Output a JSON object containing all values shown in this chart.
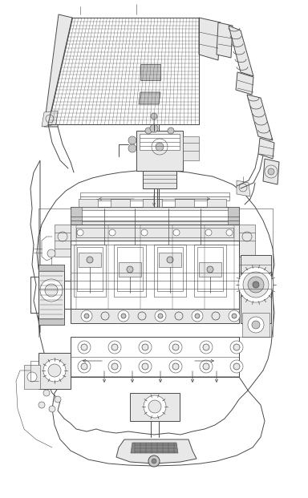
{
  "bg_color": "#ffffff",
  "line_color": "#4a4a4a",
  "dark_color": "#1a1a1a",
  "fill_light": "#e8e8e8",
  "fill_med": "#c8c8c8",
  "fill_dark": "#888888",
  "fig_width": 3.84,
  "fig_height": 6.21,
  "dpi": 100,
  "lw_thin": 0.4,
  "lw_med": 0.7,
  "lw_thick": 1.1
}
